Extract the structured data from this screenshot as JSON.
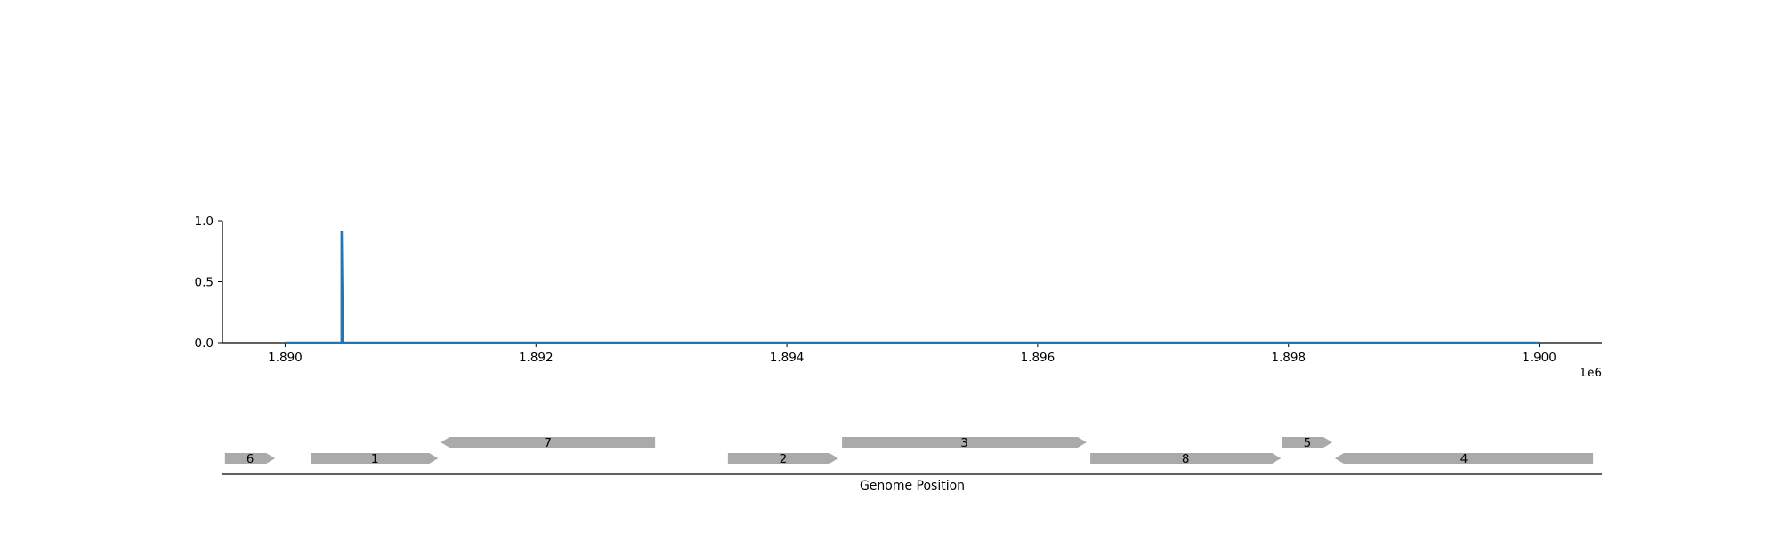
{
  "chart_data": [
    {
      "type": "line",
      "title": "",
      "xlabel": "",
      "ylabel": "",
      "x_offset_label": "1e6",
      "xlim": [
        1.8895,
        1.9005
      ],
      "ylim": [
        0.0,
        1.0
      ],
      "x_ticks": [
        1.89,
        1.892,
        1.894,
        1.896,
        1.898,
        1.9
      ],
      "x_tick_labels": [
        "1.890",
        "1.892",
        "1.894",
        "1.896",
        "1.898",
        "1.900"
      ],
      "y_ticks": [
        0.0,
        0.5,
        1.0
      ],
      "y_tick_labels": [
        "0.0",
        "0.5",
        "1.0"
      ],
      "grid": false,
      "color": "#1f77b4",
      "series": [
        {
          "x": [
            1.89,
            1.89045,
            1.89045,
            1.89045,
            1.89046,
            1.9
          ],
          "y": [
            0.0,
            0.0,
            0.92,
            0.92,
            0.0,
            0.0
          ]
        }
      ]
    },
    {
      "type": "gene-track",
      "xlabel": "Genome Position",
      "xlim": [
        1.8895,
        1.9005
      ],
      "feature_color": "#aaaaaa",
      "genes": [
        {
          "label": "6",
          "start": 1.88952,
          "end": 1.88992,
          "strand": "+",
          "row": 0
        },
        {
          "label": "1",
          "start": 1.89021,
          "end": 1.89122,
          "strand": "+",
          "row": 0
        },
        {
          "label": "7",
          "start": 1.89124,
          "end": 1.89295,
          "strand": "-",
          "row": 1
        },
        {
          "label": "2",
          "start": 1.89353,
          "end": 1.89441,
          "strand": "+",
          "row": 0
        },
        {
          "label": "3",
          "start": 1.89444,
          "end": 1.89639,
          "strand": "+",
          "row": 1
        },
        {
          "label": "8",
          "start": 1.89642,
          "end": 1.89794,
          "strand": "+",
          "row": 0
        },
        {
          "label": "5",
          "start": 1.89795,
          "end": 1.89835,
          "strand": "+",
          "row": 1
        },
        {
          "label": "4",
          "start": 1.89837,
          "end": 1.90043,
          "strand": "-",
          "row": 0
        }
      ]
    }
  ]
}
